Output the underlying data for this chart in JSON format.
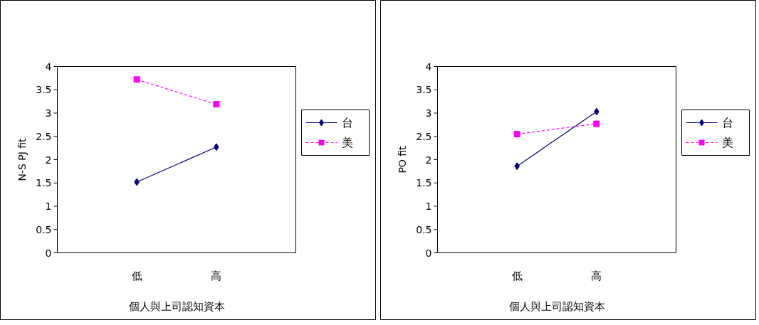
{
  "chart_data": [
    {
      "type": "line",
      "categories": [
        "低",
        "高"
      ],
      "xlabel": "個人與上司認知資本",
      "ylabel": "N-S PJ fit",
      "ylim": [
        0,
        4
      ],
      "yticks": [
        0,
        0.5,
        1,
        1.5,
        2,
        2.5,
        3,
        3.5,
        4
      ],
      "grid": false,
      "legend": "right",
      "series": [
        {
          "name": "台",
          "color": "#000080",
          "values": [
            1.52,
            2.27
          ],
          "marker": "diamond",
          "line_style": "solid"
        },
        {
          "name": "美",
          "color": "#ff00ff",
          "values": [
            3.72,
            3.19
          ],
          "marker": "square",
          "line_style": "dashed"
        }
      ]
    },
    {
      "type": "line",
      "categories": [
        "低",
        "高"
      ],
      "xlabel": "個人與上司認知資本",
      "ylabel": "PO fit",
      "ylim": [
        0,
        4
      ],
      "yticks": [
        0,
        0.5,
        1,
        1.5,
        2,
        2.5,
        3,
        3.5,
        4
      ],
      "grid": false,
      "legend": "right",
      "series": [
        {
          "name": "台",
          "color": "#000080",
          "values": [
            1.86,
            3.03
          ],
          "marker": "diamond",
          "line_style": "solid"
        },
        {
          "name": "美",
          "color": "#ff00ff",
          "values": [
            2.55,
            2.77
          ],
          "marker": "square",
          "line_style": "dashed"
        }
      ]
    }
  ]
}
